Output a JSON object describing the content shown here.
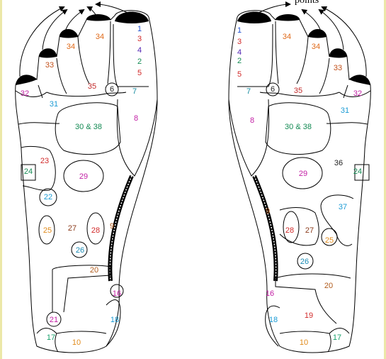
{
  "header": {
    "caption": "points"
  },
  "colors": {
    "1": "#1f4fcf",
    "2": "#138a53",
    "3": "#d12a2a",
    "4": "#4d1fb2",
    "5": "#d12a2a",
    "6": "#222222",
    "7": "#138a9e",
    "8": "#c21ea4",
    "9": "#b05a1a",
    "10": "#e08a1a",
    "16": "#c21ea4",
    "17": "#17a06a",
    "18": "#1a9ad4",
    "19": "#d12a2a",
    "20": "#b05a1a",
    "21": "#c21ea4",
    "22": "#1a9ad4",
    "23": "#d12a2a",
    "24": "#138a53",
    "25": "#e08a1a",
    "26": "#1a8ab4",
    "27": "#8a3a1a",
    "28": "#d12a2a",
    "29": "#c21ea4",
    "30 & 38": "#138a53",
    "31": "#1a9ad4",
    "32": "#c21ea4",
    "33": "#c2501a",
    "34": "#e06a1a",
    "35": "#c22a2a",
    "36": "#222222",
    "37": "#1a9ad4"
  },
  "left_foot": {
    "labels": [
      "1",
      "3",
      "4",
      "2",
      "5",
      "7",
      "8",
      "6",
      "35",
      "34",
      "34",
      "33",
      "32",
      "31",
      "30 & 38",
      "23",
      "24",
      "29",
      "22",
      "25",
      "27",
      "28",
      "9",
      "26",
      "20",
      "16",
      "18",
      "21",
      "17",
      "10"
    ]
  },
  "right_foot": {
    "labels": [
      "1",
      "3",
      "4",
      "2",
      "5",
      "7",
      "8",
      "6",
      "35",
      "34",
      "34",
      "33",
      "32",
      "31",
      "30 & 38",
      "29",
      "36",
      "24",
      "37",
      "9",
      "28",
      "27",
      "25",
      "26",
      "16",
      "20",
      "19",
      "18",
      "17",
      "10"
    ]
  }
}
